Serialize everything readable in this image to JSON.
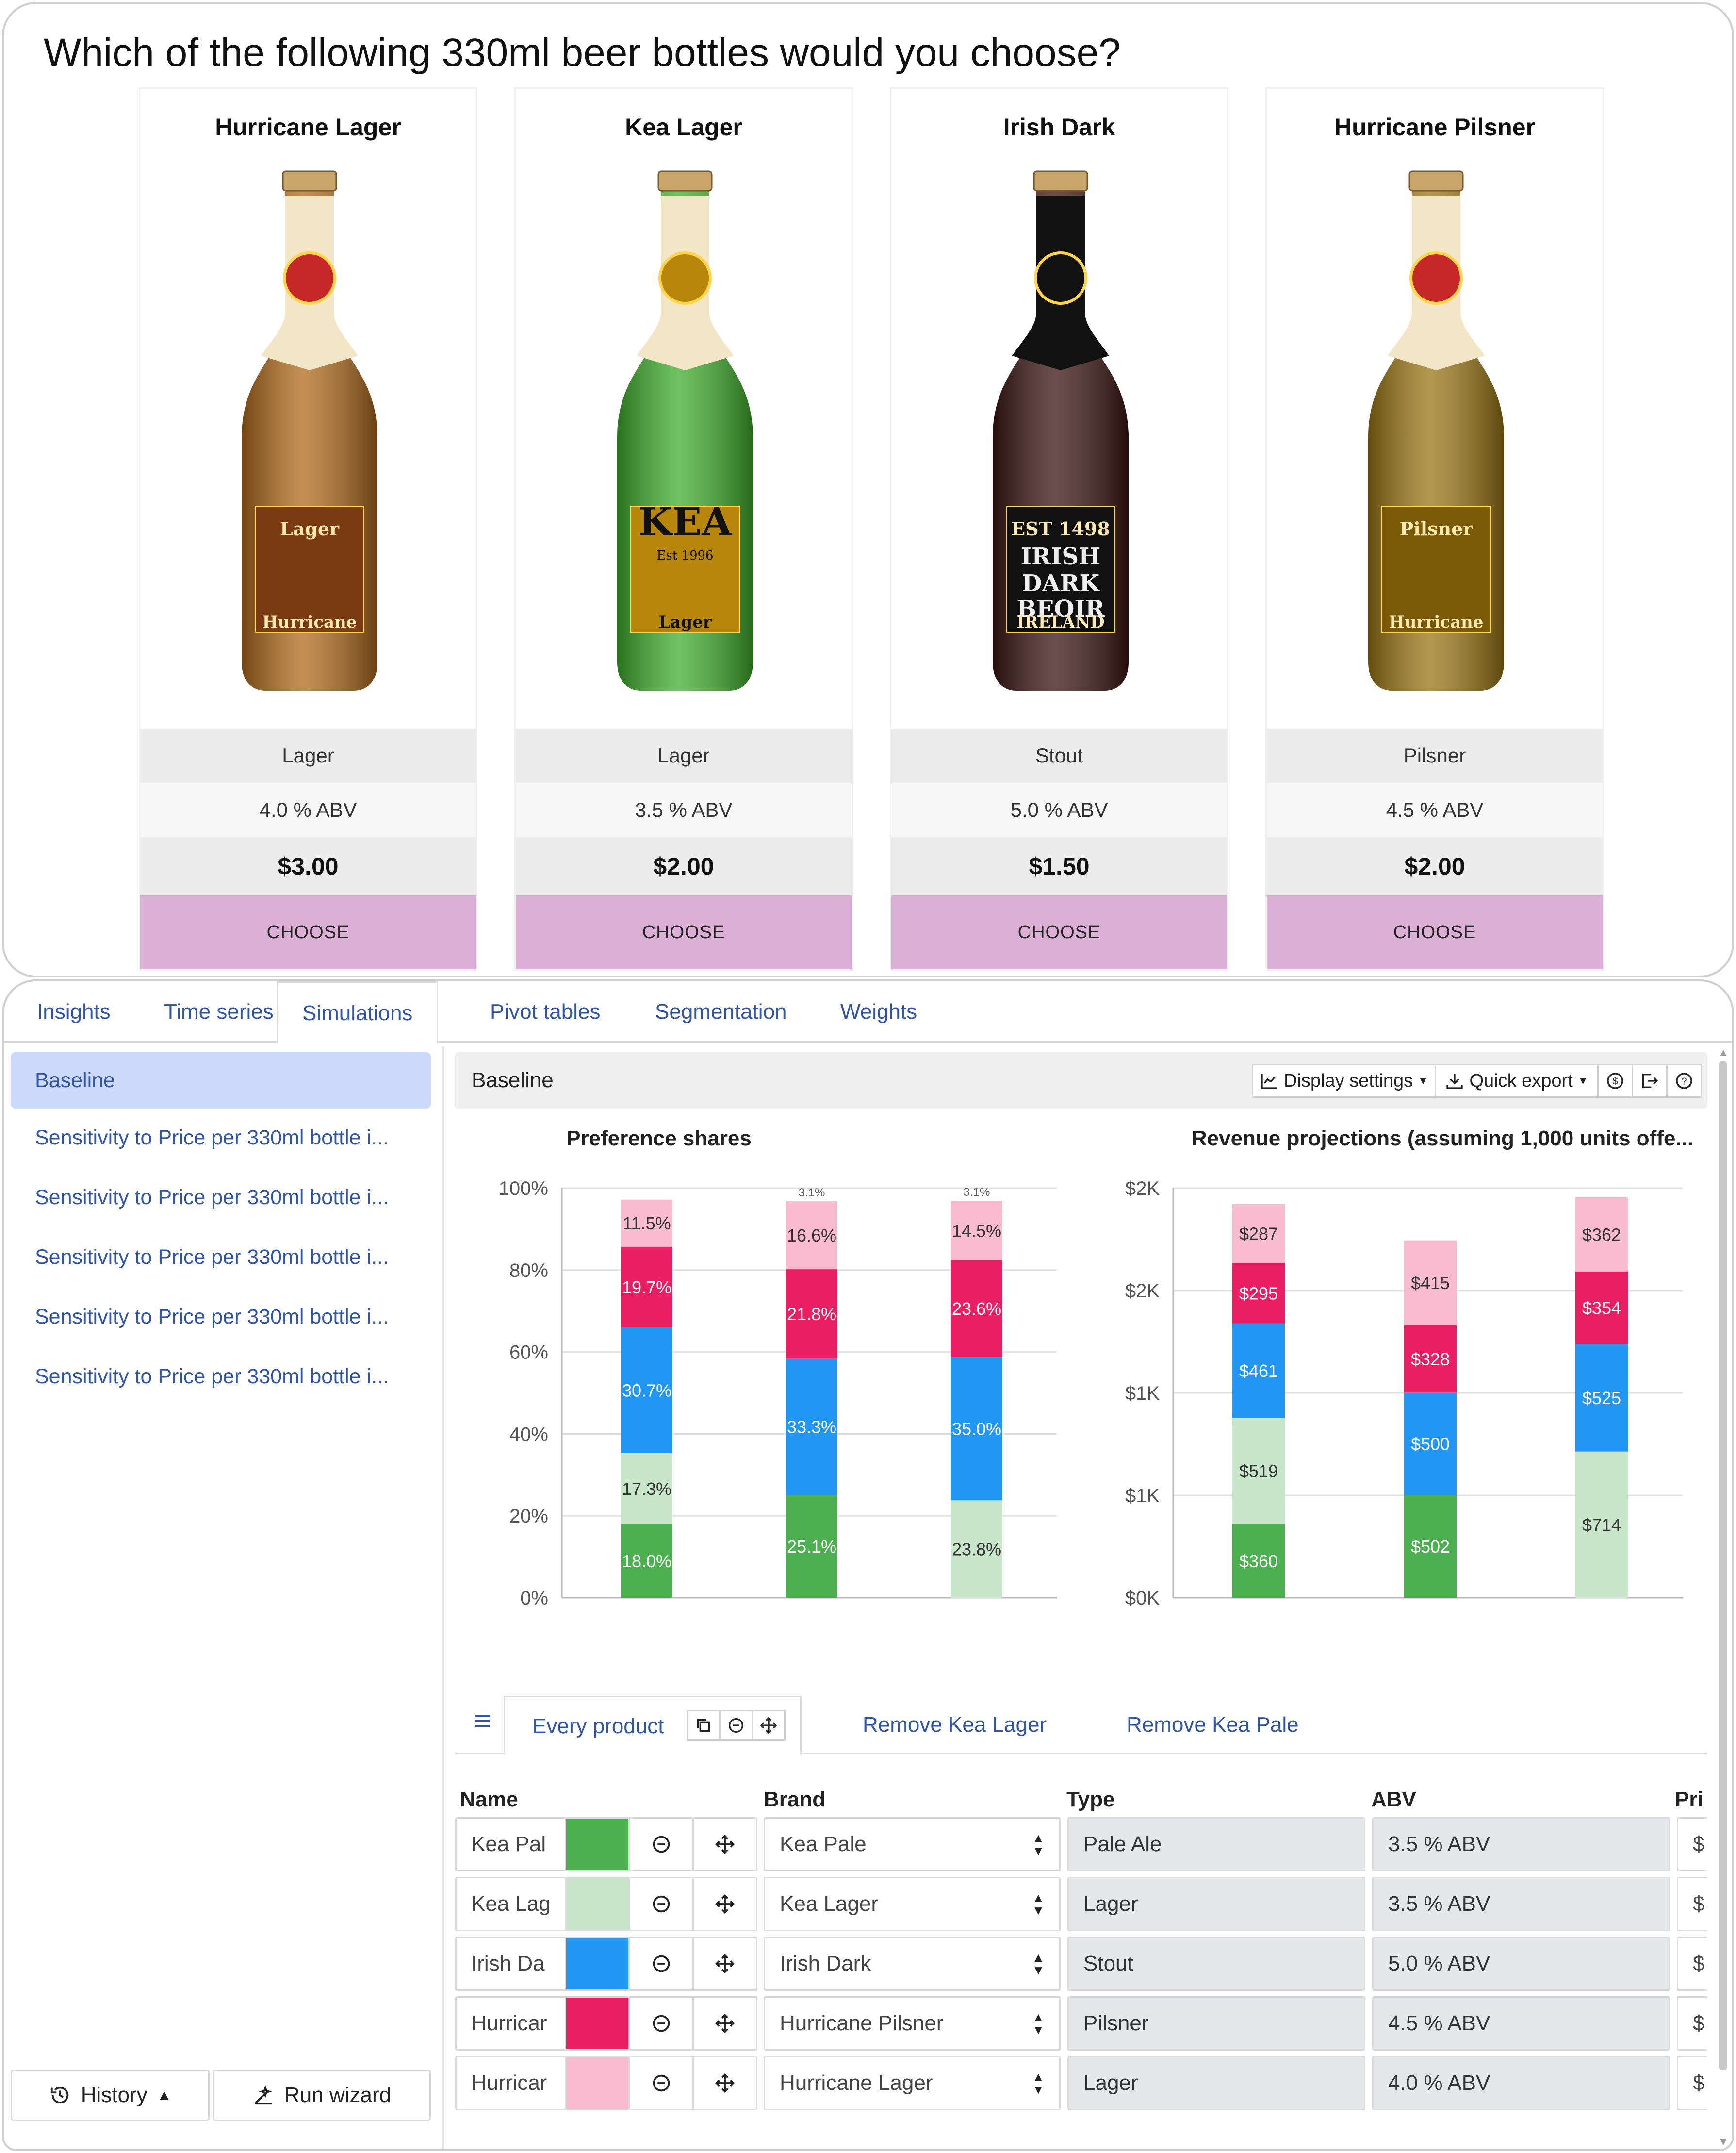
{
  "survey": {
    "question": "Which of the following 330ml beer bottles would you choose?",
    "choose_label": "CHOOSE",
    "products": [
      {
        "name": "Hurricane Lager",
        "type": "Lager",
        "abv": "4.0 % ABV",
        "price": "$3.00",
        "label_top": "Lager",
        "label_bottom": "Hurricane",
        "glass": "#b06a1c",
        "label_color": "#7a3b12",
        "bottle_icon": "hurricane-lager-bottle-icon"
      },
      {
        "name": "Kea Lager",
        "type": "Lager",
        "abv": "3.5 % ABV",
        "price": "$2.00",
        "label_top": "KEA",
        "label_sub": "Est 1996",
        "label_bottom": "Lager",
        "glass": "#3fae2c",
        "label_color": "#b8860b",
        "bottle_icon": "kea-lager-bottle-icon"
      },
      {
        "name": "Irish Dark",
        "type": "Stout",
        "abv": "5.0 % ABV",
        "price": "$1.50",
        "label_top": "EST 1498",
        "label_l1": "IRISH",
        "label_l2": "DARK",
        "label_l3": "BEOIR",
        "label_bottom": "IRELAND",
        "glass": "#3a1410",
        "label_color": "#111111",
        "bottle_icon": "irish-dark-bottle-icon"
      },
      {
        "name": "Hurricane Pilsner",
        "type": "Pilsner",
        "abv": "4.5 % ABV",
        "price": "$2.00",
        "label_top": "Pilsner",
        "label_bottom": "Hurricane",
        "glass": "#9a7614",
        "label_color": "#7a5a06",
        "bottle_icon": "hurricane-pilsner-bottle-icon"
      }
    ]
  },
  "tabs": [
    "Insights",
    "Time series",
    "Simulations",
    "Pivot tables",
    "Segmentation",
    "Weights"
  ],
  "active_tab": "Simulations",
  "sidebar": {
    "items": [
      "Baseline",
      "Sensitivity to Price per 330ml bottle i...",
      "Sensitivity to Price per 330ml bottle i...",
      "Sensitivity to Price per 330ml bottle i...",
      "Sensitivity to Price per 330ml bottle i...",
      "Sensitivity to Price per 330ml bottle i..."
    ],
    "history_label": "History",
    "run_wizard_label": "Run wizard"
  },
  "toolbar": {
    "title": "Baseline",
    "display_settings": "Display settings",
    "quick_export": "Quick export"
  },
  "colors": {
    "kea_pale": "#4caf50",
    "kea_lager": "#c8e6c9",
    "irish_dark": "#2196f3",
    "hurricane_pilsner": "#e91e63",
    "hurricane_lager": "#f8bbd0",
    "link": "#2f55a4"
  },
  "chart_data": [
    {
      "type": "bar",
      "stacked": true,
      "title": "Preference shares",
      "categories": [
        "Every product",
        "Remove Kea Lager",
        "Remove Kea Pale"
      ],
      "ylim": [
        0,
        100
      ],
      "yticks": [
        "0%",
        "20%",
        "40%",
        "60%",
        "80%",
        "100%"
      ],
      "grid": true,
      "series": [
        {
          "color": "#4caf50",
          "values": [
            18.0,
            25.1,
            0
          ],
          "labels": [
            "18.0%",
            "25.1%",
            ""
          ]
        },
        {
          "color": "#c8e6c9",
          "values": [
            17.3,
            0,
            23.8
          ],
          "labels": [
            "17.3%",
            "",
            "23.8%"
          ]
        },
        {
          "color": "#2196f3",
          "values": [
            30.7,
            33.3,
            35.0
          ],
          "labels": [
            "30.7%",
            "33.3%",
            "35.0%"
          ]
        },
        {
          "color": "#e91e63",
          "values": [
            19.7,
            21.8,
            23.6
          ],
          "labels": [
            "19.7%",
            "21.8%",
            "23.6%"
          ]
        },
        {
          "color": "#f8bbd0",
          "values": [
            11.5,
            16.6,
            14.5
          ],
          "labels": [
            "11.5%",
            "16.6%",
            "14.5%"
          ]
        }
      ],
      "top_labels": [
        "",
        "3.1%",
        "3.1%"
      ]
    },
    {
      "type": "bar",
      "stacked": true,
      "title": "Revenue projections (assuming 1,000 units offe...",
      "categories": [
        "Every product",
        "Remove Kea Lager",
        "Remove Kea Pale"
      ],
      "ylim": [
        0,
        2000
      ],
      "yticks": [
        "$0K",
        "$1K",
        "$1K",
        "$2K",
        "$2K"
      ],
      "grid": true,
      "series": [
        {
          "color": "#4caf50",
          "values": [
            360,
            502,
            0
          ],
          "labels": [
            "$360",
            "$502",
            ""
          ]
        },
        {
          "color": "#c8e6c9",
          "values": [
            519,
            0,
            714
          ],
          "labels": [
            "$519",
            "",
            "$714"
          ]
        },
        {
          "color": "#2196f3",
          "values": [
            461,
            500,
            525
          ],
          "labels": [
            "$461",
            "$500",
            "$525"
          ]
        },
        {
          "color": "#e91e63",
          "values": [
            295,
            328,
            354
          ],
          "labels": [
            "$295",
            "$328",
            "$354"
          ]
        },
        {
          "color": "#f8bbd0",
          "values": [
            287,
            415,
            362
          ],
          "labels": [
            "$287",
            "$415",
            "$362"
          ]
        }
      ]
    }
  ],
  "scenario_tabs": [
    "Every product",
    "Remove Kea Lager",
    "Remove Kea Pale"
  ],
  "grid": {
    "headers": [
      "Name",
      "Brand",
      "Type",
      "ABV",
      "Pri"
    ],
    "rows": [
      {
        "name": "Kea Pal",
        "color": "#4caf50",
        "brand": "Kea Pale",
        "type": "Pale Ale",
        "abv": "3.5 % ABV",
        "price": "$"
      },
      {
        "name": "Kea Lag",
        "color": "#c8e6c9",
        "brand": "Kea Lager",
        "type": "Lager",
        "abv": "3.5 % ABV",
        "price": "$"
      },
      {
        "name": "Irish Da",
        "color": "#2196f3",
        "brand": "Irish Dark",
        "type": "Stout",
        "abv": "5.0 % ABV",
        "price": "$"
      },
      {
        "name": "Hurricar",
        "color": "#e91e63",
        "brand": "Hurricane Pilsner",
        "type": "Pilsner",
        "abv": "4.5 % ABV",
        "price": "$"
      },
      {
        "name": "Hurricar",
        "color": "#f8bbd0",
        "brand": "Hurricane Lager",
        "type": "Lager",
        "abv": "4.0 % ABV",
        "price": "$"
      }
    ]
  }
}
